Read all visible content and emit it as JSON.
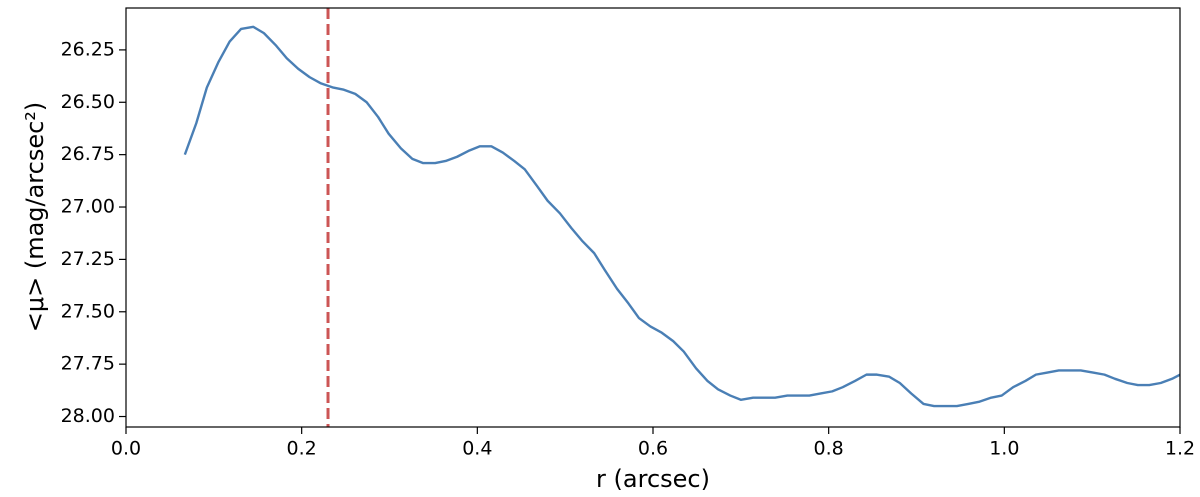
{
  "chart_data": {
    "type": "line",
    "xlabel": "r (arcsec)",
    "ylabel": "<μ> (mag/arcsec²)",
    "xlim": [
      0,
      1.2
    ],
    "ylim": [
      26.05,
      28.05
    ],
    "y_inverted": true,
    "xticks": [
      {
        "value": 0,
        "label": "0.0"
      },
      0.2,
      0.4,
      0.6,
      0.8,
      {
        "value": 1,
        "label": "1.0"
      },
      1.2
    ],
    "yticks": [
      26.25,
      {
        "value": 26.5,
        "label": "26.50"
      },
      26.75,
      {
        "value": 27,
        "label": "27.00"
      },
      27.25,
      {
        "value": 27.5,
        "label": "27.50"
      },
      27.75,
      {
        "value": 28,
        "label": "28.00"
      }
    ],
    "grid": false,
    "x": [
      0.067,
      0.08,
      0.092,
      0.105,
      0.118,
      0.131,
      0.145,
      0.157,
      0.171,
      0.183,
      0.196,
      0.209,
      0.222,
      0.236,
      0.248,
      0.261,
      0.274,
      0.287,
      0.299,
      0.313,
      0.326,
      0.338,
      0.352,
      0.364,
      0.377,
      0.391,
      0.403,
      0.416,
      0.429,
      0.442,
      0.454,
      0.468,
      0.48,
      0.494,
      0.507,
      0.519,
      0.533,
      0.545,
      0.559,
      0.572,
      0.584,
      0.597,
      0.61,
      0.623,
      0.635,
      0.649,
      0.662,
      0.674,
      0.688,
      0.7,
      0.714,
      0.726,
      0.739,
      0.753,
      0.765,
      0.778,
      0.791,
      0.804,
      0.816,
      0.83,
      0.843,
      0.855,
      0.869,
      0.881,
      0.894,
      0.908,
      0.92,
      0.932,
      0.946,
      0.959,
      0.971,
      0.985,
      0.997,
      1.01,
      1.024,
      1.036,
      1.049,
      1.062,
      1.075,
      1.087,
      1.101,
      1.114,
      1.126,
      1.14,
      1.152,
      1.165,
      1.178,
      1.191,
      1.2
    ],
    "series": [
      {
        "color": "#4a7fb5",
        "values": [
          26.75,
          26.6,
          26.43,
          26.31,
          26.21,
          26.15,
          26.14,
          26.17,
          26.23,
          26.29,
          26.34,
          26.38,
          26.41,
          26.43,
          26.44,
          26.46,
          26.5,
          26.57,
          26.65,
          26.72,
          26.77,
          26.79,
          26.79,
          26.78,
          26.76,
          26.73,
          26.71,
          26.71,
          26.74,
          26.78,
          26.82,
          26.9,
          26.97,
          27.03,
          27.1,
          27.16,
          27.22,
          27.3,
          27.39,
          27.46,
          27.53,
          27.57,
          27.6,
          27.64,
          27.69,
          27.77,
          27.83,
          27.87,
          27.9,
          27.92,
          27.91,
          27.91,
          27.91,
          27.9,
          27.9,
          27.9,
          27.89,
          27.88,
          27.86,
          27.83,
          27.8,
          27.8,
          27.81,
          27.84,
          27.89,
          27.94,
          27.95,
          27.95,
          27.95,
          27.94,
          27.93,
          27.91,
          27.9,
          27.86,
          27.83,
          27.8,
          27.79,
          27.78,
          27.78,
          27.78,
          27.79,
          27.8,
          27.82,
          27.84,
          27.85,
          27.85,
          27.84,
          27.82,
          27.8
        ]
      }
    ],
    "vline": {
      "x": 0.23,
      "color": "#cc5555",
      "style": "dashed"
    }
  }
}
